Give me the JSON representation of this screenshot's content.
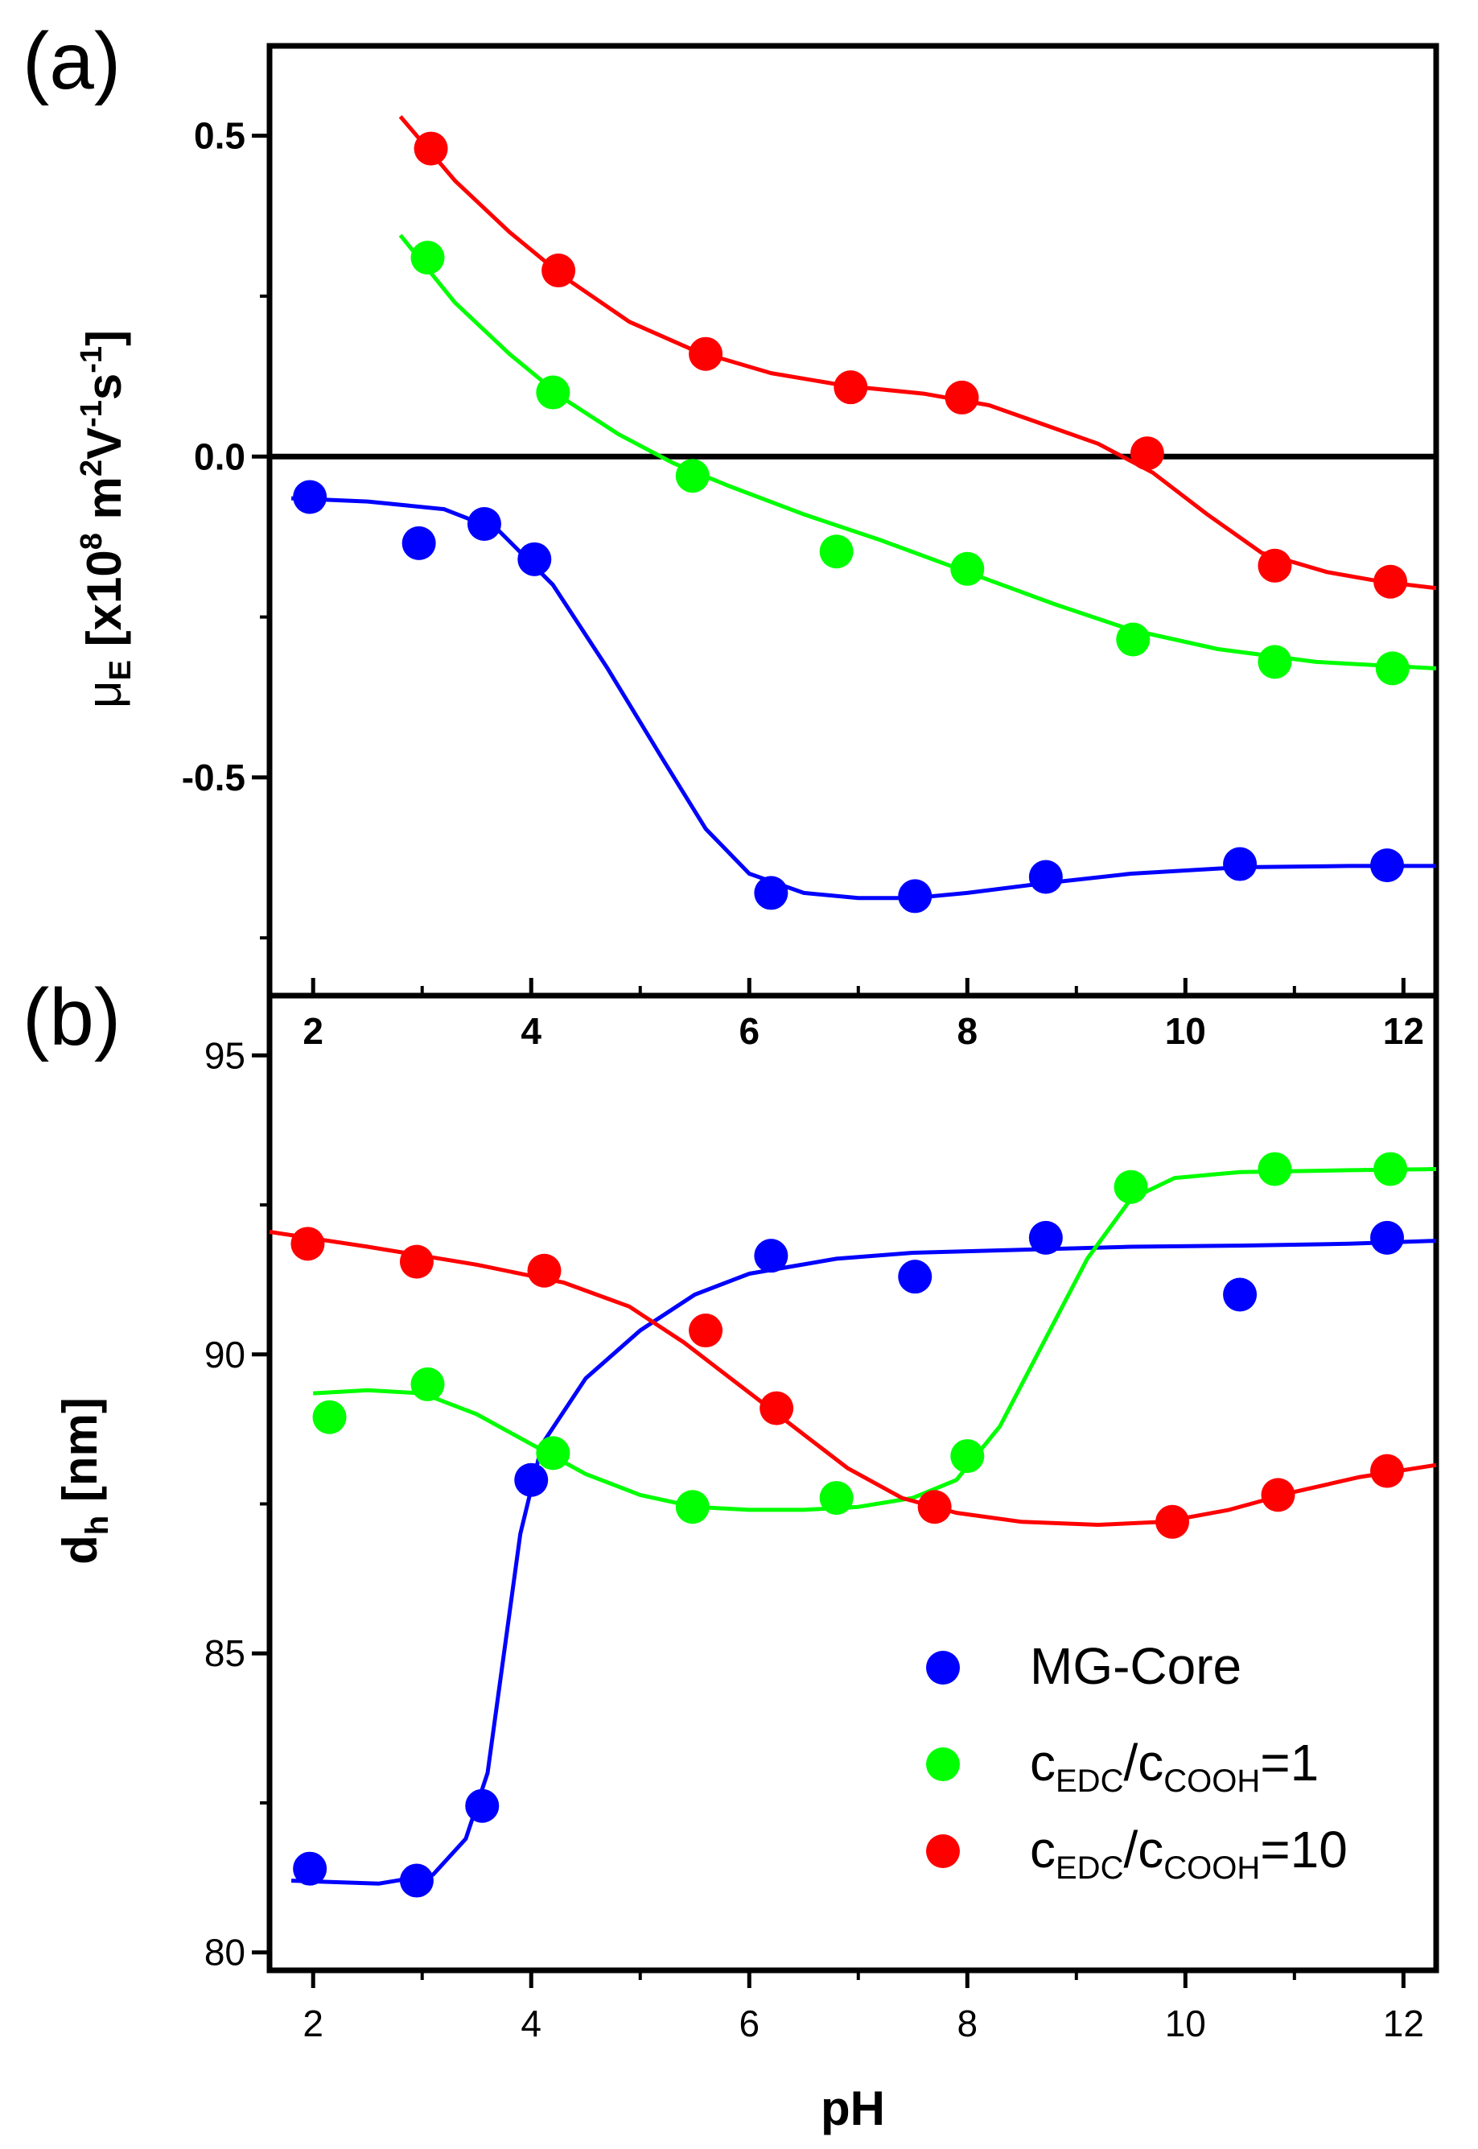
{
  "colors": {
    "mg_core": "#0000ff",
    "edc1": "#00ff00",
    "edc10": "#ff0000",
    "axis": "#000000"
  },
  "chart_data": [
    {
      "panel": "(a)",
      "type": "scatter",
      "xlim": [
        1.6,
        12.3
      ],
      "ylim": [
        -0.84,
        0.64
      ],
      "x_ticks": [
        2,
        4,
        6,
        8,
        10,
        12
      ],
      "x_tick_labels": [
        "2",
        "4",
        "6",
        "8",
        "10",
        "12"
      ],
      "y_ticks": [
        0.5,
        0.0,
        -0.5
      ],
      "y_tick_labels": [
        "0.5",
        "0.0",
        "-0.5"
      ],
      "ylabel": {
        "mu": "μ",
        "mu_sub": "E",
        "b1": " [x10",
        "exp1": "8",
        "b2": " m",
        "exp2": "2",
        "b3": "V",
        "exp3": "-1",
        "b4": "s",
        "exp4": "-1",
        "b5": "]"
      },
      "zero_line": 0,
      "series": [
        {
          "name": "MG-Core",
          "points": [
            [
              1.97,
              -0.063
            ],
            [
              2.97,
              -0.135
            ],
            [
              3.57,
              -0.105
            ],
            [
              4.03,
              -0.16
            ],
            [
              6.2,
              -0.68
            ],
            [
              7.52,
              -0.685
            ],
            [
              8.72,
              -0.655
            ],
            [
              10.5,
              -0.635
            ],
            [
              11.85,
              -0.637
            ]
          ],
          "fit": [
            [
              1.8,
              -0.065
            ],
            [
              2.5,
              -0.07
            ],
            [
              3.2,
              -0.082
            ],
            [
              3.7,
              -0.115
            ],
            [
              4.2,
              -0.2
            ],
            [
              4.7,
              -0.33
            ],
            [
              5.2,
              -0.47
            ],
            [
              5.6,
              -0.58
            ],
            [
              6.0,
              -0.65
            ],
            [
              6.5,
              -0.68
            ],
            [
              7.0,
              -0.688
            ],
            [
              7.5,
              -0.688
            ],
            [
              8.0,
              -0.68
            ],
            [
              8.7,
              -0.665
            ],
            [
              9.5,
              -0.65
            ],
            [
              10.5,
              -0.64
            ],
            [
              11.5,
              -0.638
            ],
            [
              12.3,
              -0.638
            ]
          ]
        },
        {
          "name": "cEDC/cCOOH=1",
          "points": [
            [
              3.05,
              0.31
            ],
            [
              4.2,
              0.1
            ],
            [
              5.48,
              -0.03
            ],
            [
              6.8,
              -0.148
            ],
            [
              8.0,
              -0.175
            ],
            [
              9.52,
              -0.285
            ],
            [
              10.82,
              -0.32
            ],
            [
              11.9,
              -0.33
            ]
          ],
          "fit": [
            [
              2.8,
              0.345
            ],
            [
              3.3,
              0.24
            ],
            [
              3.8,
              0.16
            ],
            [
              4.3,
              0.09
            ],
            [
              4.8,
              0.035
            ],
            [
              5.3,
              -0.01
            ],
            [
              5.8,
              -0.045
            ],
            [
              6.5,
              -0.09
            ],
            [
              7.2,
              -0.13
            ],
            [
              8.0,
              -0.18
            ],
            [
              8.8,
              -0.23
            ],
            [
              9.5,
              -0.27
            ],
            [
              10.3,
              -0.3
            ],
            [
              11.2,
              -0.32
            ],
            [
              12.3,
              -0.33
            ]
          ]
        },
        {
          "name": "cEDC/cCOOH=10",
          "points": [
            [
              3.08,
              0.48
            ],
            [
              4.25,
              0.29
            ],
            [
              5.6,
              0.16
            ],
            [
              6.93,
              0.108
            ],
            [
              7.95,
              0.092
            ],
            [
              9.65,
              0.005
            ],
            [
              10.82,
              -0.17
            ],
            [
              11.88,
              -0.195
            ]
          ],
          "fit": [
            [
              2.8,
              0.53
            ],
            [
              3.3,
              0.43
            ],
            [
              3.8,
              0.35
            ],
            [
              4.3,
              0.28
            ],
            [
              4.9,
              0.21
            ],
            [
              5.5,
              0.165
            ],
            [
              6.2,
              0.13
            ],
            [
              6.9,
              0.11
            ],
            [
              7.6,
              0.098
            ],
            [
              8.2,
              0.08
            ],
            [
              8.7,
              0.05
            ],
            [
              9.2,
              0.02
            ],
            [
              9.7,
              -0.025
            ],
            [
              10.2,
              -0.09
            ],
            [
              10.7,
              -0.15
            ],
            [
              11.3,
              -0.18
            ],
            [
              11.8,
              -0.195
            ],
            [
              12.3,
              -0.205
            ]
          ]
        }
      ]
    },
    {
      "panel": "(b)",
      "type": "scatter",
      "xlim": [
        1.6,
        12.3
      ],
      "ylim": [
        79.7,
        96.0
      ],
      "x_ticks": [
        2,
        4,
        6,
        8,
        10,
        12
      ],
      "x_tick_labels": [
        "2",
        "4",
        "6",
        "8",
        "10",
        "12"
      ],
      "y_ticks": [
        80,
        85,
        90,
        95
      ],
      "y_tick_labels": [
        "80",
        "85",
        "90",
        "95"
      ],
      "xlabel": "pH",
      "ylabel": {
        "main": "d",
        "sub": "h",
        "rest": " [nm]"
      },
      "legend": {
        "position": "lower-right",
        "entries": [
          {
            "label": "MG-Core"
          },
          {
            "c1": "c",
            "s1": "EDC",
            "slash": "/c",
            "s2": "COOH",
            "tail": "=1"
          },
          {
            "c1": "c",
            "s1": "EDC",
            "slash": "/c",
            "s2": "COOH",
            "tail": "=10"
          }
        ]
      },
      "series": [
        {
          "name": "MG-Core",
          "points": [
            [
              1.97,
              81.4
            ],
            [
              2.95,
              81.2
            ],
            [
              3.55,
              82.45
            ],
            [
              4.0,
              87.9
            ],
            [
              6.2,
              91.65
            ],
            [
              7.52,
              91.3
            ],
            [
              8.72,
              91.95
            ],
            [
              10.5,
              91.0
            ],
            [
              11.85,
              91.95
            ]
          ],
          "fit": [
            [
              1.8,
              81.2
            ],
            [
              2.6,
              81.15
            ],
            [
              3.1,
              81.3
            ],
            [
              3.4,
              81.9
            ],
            [
              3.6,
              83.0
            ],
            [
              3.75,
              85.0
            ],
            [
              3.9,
              87.0
            ],
            [
              4.1,
              88.5
            ],
            [
              4.5,
              89.6
            ],
            [
              5.0,
              90.4
            ],
            [
              5.5,
              91.0
            ],
            [
              6.0,
              91.35
            ],
            [
              6.8,
              91.6
            ],
            [
              7.5,
              91.7
            ],
            [
              8.5,
              91.75
            ],
            [
              9.5,
              91.8
            ],
            [
              10.5,
              91.82
            ],
            [
              11.5,
              91.85
            ],
            [
              12.3,
              91.9
            ]
          ]
        },
        {
          "name": "cEDC/cCOOH=1",
          "points": [
            [
              2.15,
              88.95
            ],
            [
              3.05,
              89.5
            ],
            [
              4.2,
              88.35
            ],
            [
              5.48,
              87.45
            ],
            [
              6.8,
              87.6
            ],
            [
              8.0,
              88.3
            ],
            [
              9.5,
              92.8
            ],
            [
              10.82,
              93.1
            ],
            [
              11.88,
              93.1
            ]
          ],
          "fit": [
            [
              2.0,
              89.35
            ],
            [
              2.5,
              89.4
            ],
            [
              3.0,
              89.35
            ],
            [
              3.5,
              89.0
            ],
            [
              4.0,
              88.5
            ],
            [
              4.5,
              88.0
            ],
            [
              5.0,
              87.65
            ],
            [
              5.5,
              87.45
            ],
            [
              6.0,
              87.4
            ],
            [
              6.5,
              87.4
            ],
            [
              7.0,
              87.45
            ],
            [
              7.5,
              87.6
            ],
            [
              7.9,
              87.9
            ],
            [
              8.3,
              88.8
            ],
            [
              8.7,
              90.2
            ],
            [
              9.1,
              91.6
            ],
            [
              9.5,
              92.6
            ],
            [
              9.9,
              92.95
            ],
            [
              10.5,
              93.05
            ],
            [
              11.5,
              93.08
            ],
            [
              12.3,
              93.1
            ]
          ]
        },
        {
          "name": "cEDC/cCOOH=10",
          "points": [
            [
              1.95,
              91.85
            ],
            [
              2.95,
              91.55
            ],
            [
              4.12,
              91.4
            ],
            [
              5.6,
              90.4
            ],
            [
              6.25,
              89.1
            ],
            [
              7.7,
              87.45
            ],
            [
              9.88,
              87.2
            ],
            [
              10.85,
              87.65
            ],
            [
              11.85,
              88.05
            ]
          ],
          "fit": [
            [
              1.6,
              92.05
            ],
            [
              2.5,
              91.8
            ],
            [
              3.5,
              91.5
            ],
            [
              4.3,
              91.2
            ],
            [
              4.9,
              90.8
            ],
            [
              5.4,
              90.2
            ],
            [
              5.9,
              89.5
            ],
            [
              6.4,
              88.8
            ],
            [
              6.9,
              88.1
            ],
            [
              7.4,
              87.6
            ],
            [
              7.9,
              87.35
            ],
            [
              8.5,
              87.2
            ],
            [
              9.2,
              87.15
            ],
            [
              9.8,
              87.2
            ],
            [
              10.4,
              87.4
            ],
            [
              11.0,
              87.7
            ],
            [
              11.6,
              87.95
            ],
            [
              12.3,
              88.15
            ]
          ]
        }
      ]
    }
  ]
}
